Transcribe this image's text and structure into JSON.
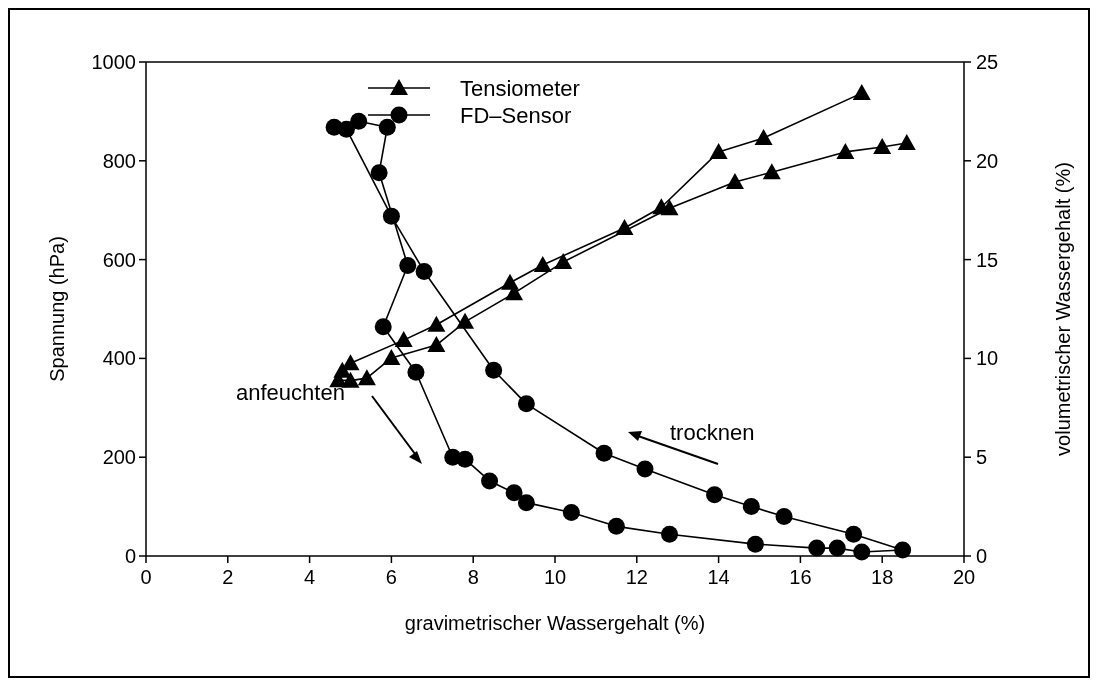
{
  "chart_data": {
    "type": "line",
    "xlabel": "gravimetrischer Wassergehalt  (%)",
    "ylabel": "Spannung (hPa)",
    "y2label": "volumetrischer Wassergehalt (%)",
    "xlim": [
      0,
      20
    ],
    "xticks": [
      0,
      2,
      4,
      6,
      8,
      10,
      12,
      14,
      16,
      18,
      20
    ],
    "ylim": [
      0,
      1000
    ],
    "yticks": [
      0,
      200,
      400,
      600,
      800,
      1000
    ],
    "y2lim": [
      0,
      25
    ],
    "y2ticks": [
      0,
      5,
      10,
      15,
      20,
      25
    ],
    "legend": "top",
    "grid": false,
    "line_style": "solid",
    "annotations": [
      "anfeuchten",
      "trocknen"
    ],
    "series": [
      {
        "name": "Tensiometer",
        "color": "#000000",
        "marker": "triangle",
        "axis": "y",
        "x": [
          17.5,
          15.1,
          14.0,
          12.6,
          11.7,
          9.7,
          8.9,
          7.1,
          6.3,
          5.0,
          4.8,
          4.7,
          5.0,
          5.4,
          6.0,
          7.1,
          7.8,
          9.0,
          10.2,
          12.8,
          14.4,
          15.3,
          17.1,
          18.0,
          18.6
        ],
        "values": [
          937,
          846,
          818,
          706,
          664,
          589,
          553,
          468,
          437,
          390,
          375,
          356,
          355,
          360,
          401,
          427,
          474,
          532,
          595,
          704,
          757,
          777,
          818,
          828,
          836
        ]
      },
      {
        "name": "FD–Sensor",
        "color": "#000000",
        "marker": "circle",
        "axis": "y2",
        "x": [
          5.2,
          5.9,
          5.7,
          6.4,
          5.8,
          6.6,
          7.5,
          7.8,
          8.4,
          9.0,
          9.3,
          10.4,
          11.5,
          12.8,
          14.9,
          16.4,
          16.9,
          17.5,
          18.5,
          17.3,
          15.6,
          14.8,
          13.9,
          12.2,
          11.2,
          9.3,
          8.5,
          6.8,
          6.0,
          4.9,
          4.6
        ],
        "values": [
          22.0,
          21.7,
          19.4,
          14.7,
          11.6,
          9.3,
          5.0,
          4.9,
          3.8,
          3.2,
          2.7,
          2.2,
          1.5,
          1.1,
          0.6,
          0.4,
          0.4,
          0.2,
          0.3,
          1.1,
          2.0,
          2.5,
          3.1,
          4.4,
          5.2,
          7.7,
          9.4,
          14.4,
          17.2,
          21.6,
          21.7
        ]
      }
    ]
  }
}
